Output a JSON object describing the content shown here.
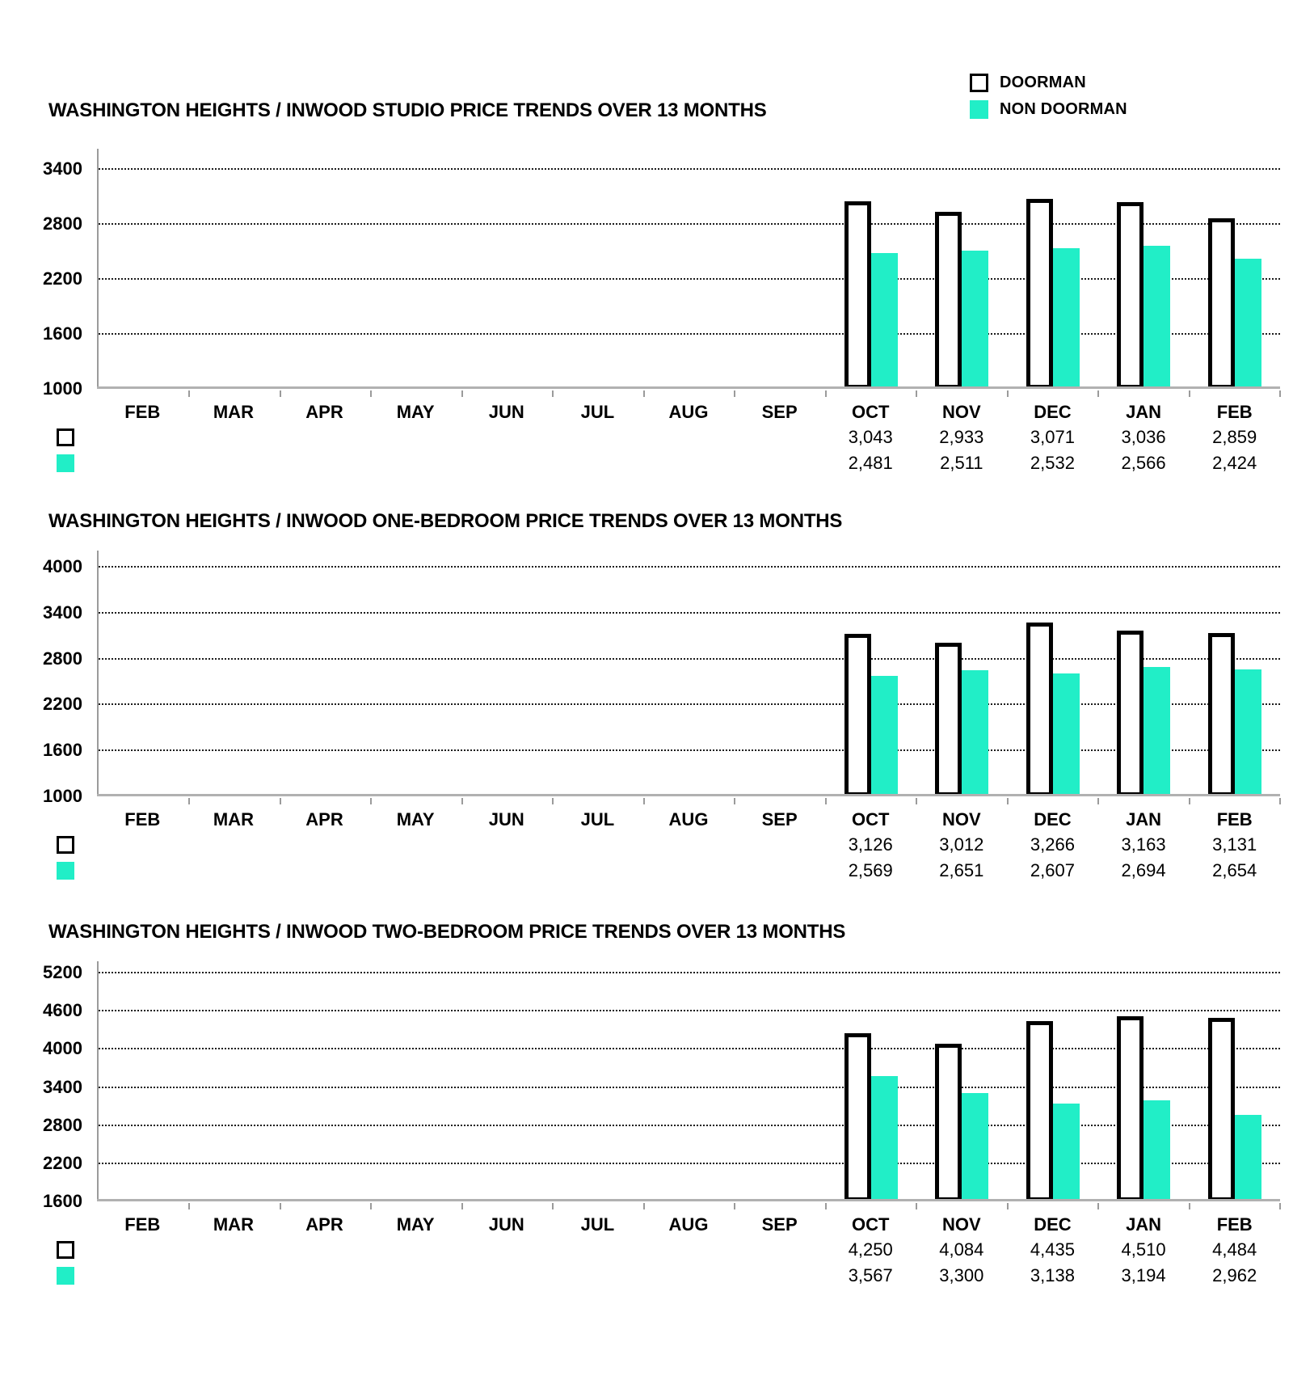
{
  "legend": {
    "position": "top-right",
    "items": [
      {
        "label": "DOORMAN",
        "swatch": "doorman"
      },
      {
        "label": "NON DOORMAN",
        "swatch": "non_doorman"
      }
    ]
  },
  "colors": {
    "doorman_fill": "#ffffff",
    "doorman_border": "#000000",
    "non_doorman_fill": "#21EEC7",
    "axis_gray": "#9b9b9b",
    "text": "#000000"
  },
  "chart_data": [
    {
      "type": "bar",
      "title": "WASHINGTON HEIGHTS / INWOOD STUDIO PRICE TRENDS OVER 13 MONTHS",
      "categories": [
        "FEB",
        "MAR",
        "APR",
        "MAY",
        "JUN",
        "JUL",
        "AUG",
        "SEP",
        "OCT",
        "NOV",
        "DEC",
        "JAN",
        "FEB"
      ],
      "series": [
        {
          "name": "DOORMAN",
          "values": [
            null,
            null,
            null,
            null,
            null,
            null,
            null,
            null,
            3043,
            2933,
            3071,
            3036,
            2859
          ]
        },
        {
          "name": "NON DOORMAN",
          "values": [
            null,
            null,
            null,
            null,
            null,
            null,
            null,
            null,
            2481,
            2511,
            2532,
            2566,
            2424
          ]
        }
      ],
      "y_ticks": [
        3400,
        2800,
        2200,
        1600,
        1000
      ],
      "ylim": [
        1000,
        3400
      ],
      "grid": "dotted-horizontal",
      "legend_position": "top-right"
    },
    {
      "type": "bar",
      "title": "WASHINGTON HEIGHTS / INWOOD ONE-BEDROOM PRICE TRENDS OVER 13 MONTHS",
      "categories": [
        "FEB",
        "MAR",
        "APR",
        "MAY",
        "JUN",
        "JUL",
        "AUG",
        "SEP",
        "OCT",
        "NOV",
        "DEC",
        "JAN",
        "FEB"
      ],
      "series": [
        {
          "name": "DOORMAN",
          "values": [
            null,
            null,
            null,
            null,
            null,
            null,
            null,
            null,
            3126,
            3012,
            3266,
            3163,
            3131
          ]
        },
        {
          "name": "NON DOORMAN",
          "values": [
            null,
            null,
            null,
            null,
            null,
            null,
            null,
            null,
            2569,
            2651,
            2607,
            2694,
            2654
          ]
        }
      ],
      "y_ticks": [
        4000,
        3400,
        2800,
        2200,
        1600,
        1000
      ],
      "ylim": [
        1000,
        4000
      ],
      "grid": "dotted-horizontal",
      "legend_position": "top-right"
    },
    {
      "type": "bar",
      "title": "WASHINGTON HEIGHTS / INWOOD TWO-BEDROOM PRICE TRENDS OVER 13 MONTHS",
      "categories": [
        "FEB",
        "MAR",
        "APR",
        "MAY",
        "JUN",
        "JUL",
        "AUG",
        "SEP",
        "OCT",
        "NOV",
        "DEC",
        "JAN",
        "FEB"
      ],
      "series": [
        {
          "name": "DOORMAN",
          "values": [
            null,
            null,
            null,
            null,
            null,
            null,
            null,
            null,
            4250,
            4084,
            4435,
            4510,
            4484
          ]
        },
        {
          "name": "NON DOORMAN",
          "values": [
            null,
            null,
            null,
            null,
            null,
            null,
            null,
            null,
            3567,
            3300,
            3138,
            3194,
            2962
          ]
        }
      ],
      "y_ticks": [
        5200,
        4600,
        4000,
        3400,
        2800,
        2200,
        1600
      ],
      "ylim": [
        1600,
        5200
      ],
      "grid": "dotted-horizontal",
      "legend_position": "top-right"
    }
  ]
}
